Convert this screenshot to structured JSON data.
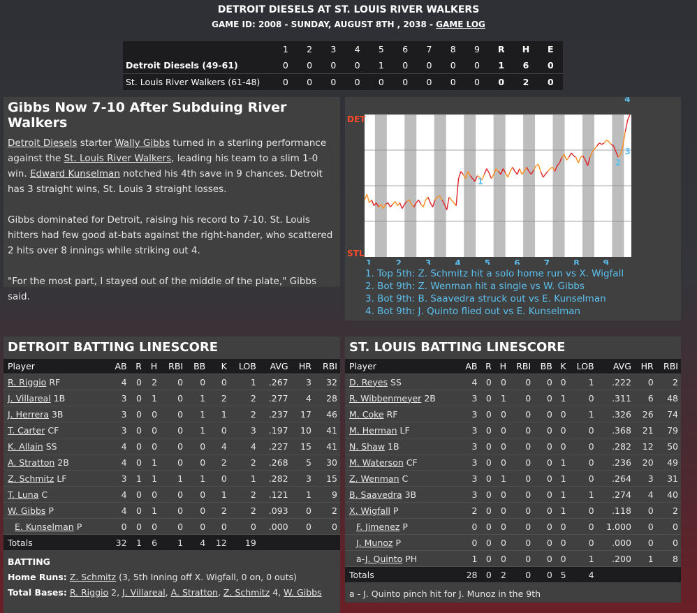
{
  "header": {
    "title": "DETROIT DIESELS AT ST. LOUIS RIVER WALKERS",
    "subtitle": "GAME ID: 2008 - SUNDAY, AUGUST 8TH , 2038 -",
    "game_log_label": "GAME LOG"
  },
  "linescore": {
    "columns": [
      "1",
      "2",
      "3",
      "4",
      "5",
      "6",
      "7",
      "8",
      "9",
      "R",
      "H",
      "E"
    ],
    "rows": [
      {
        "team": "Detroit Diesels (49-61)",
        "values": [
          "0",
          "0",
          "0",
          "0",
          "1",
          "0",
          "0",
          "0",
          "0",
          "1",
          "6",
          "0"
        ]
      },
      {
        "team": "St. Louis River Walkers (61-48)",
        "values": [
          "0",
          "0",
          "0",
          "0",
          "0",
          "0",
          "0",
          "0",
          "0",
          "0",
          "2",
          "0"
        ]
      }
    ]
  },
  "story": {
    "headline": "Gibbs Now 7-10 After Subduing River Walkers",
    "p1": {
      "link1": "Detroit Diesels",
      "t1": " starter ",
      "link2": "Wally Gibbs",
      "t2": " turned in a sterling performance against the ",
      "link3": "St. Louis River Walkers",
      "t3": ", leading his team to a slim 1-0 win. ",
      "link4": "Edward Kunselman",
      "t4": " notched his 4th save in 9 chances. Detroit has 3 straight wins, St. Louis 3 straight losses."
    },
    "p2": "Gibbs dominated for Detroit, raising his record to 7-10. St. Louis hitters had few good at-bats against the right-hander, who scattered 2 hits over 8 innings while striking out 4.",
    "p3": "\"For the most part, I stayed out of the middle of the plate,\" Gibbs said."
  },
  "win_prob": {
    "top_label": "DET",
    "bottom_label": "STL",
    "innings": [
      "1",
      "2",
      "3",
      "4",
      "5",
      "6",
      "7",
      "8",
      "9"
    ],
    "markers": [
      "1",
      "2",
      "3",
      "4"
    ],
    "plays": [
      "1. Top 5th: Z. Schmitz hit a solo home run vs X. Wigfall",
      "2. Bot 9th: Z. Wenman hit a single vs W. Gibbs",
      "3. Bot 9th: B. Saavedra struck out vs E. Kunselman",
      "4. Bot 9th: J. Quinto flied out vs E. Kunselman"
    ],
    "colors": {
      "line_a": "#ff8c1a",
      "line_b": "#e0202a",
      "marker": "#5cc0ef",
      "label": "#ff4a2a"
    },
    "det_prob": [
      0.4,
      0.44,
      0.38,
      0.4,
      0.36,
      0.38,
      0.35,
      0.37,
      0.34,
      0.37,
      0.38,
      0.35,
      0.37,
      0.39,
      0.36,
      0.38,
      0.34,
      0.37,
      0.39,
      0.4,
      0.37,
      0.35,
      0.38,
      0.4,
      0.37,
      0.35,
      0.4,
      0.42,
      0.38,
      0.35,
      0.4,
      0.42,
      0.43,
      0.4,
      0.37,
      0.33,
      0.42,
      0.4,
      0.38,
      0.36,
      0.55,
      0.6,
      0.58,
      0.55,
      0.6,
      0.57,
      0.55,
      0.53,
      0.57,
      0.56,
      0.54,
      0.58,
      0.62,
      0.59,
      0.55,
      0.58,
      0.62,
      0.6,
      0.58,
      0.62,
      0.59,
      0.56,
      0.6,
      0.63,
      0.6,
      0.58,
      0.62,
      0.58,
      0.6,
      0.63,
      0.6,
      0.58,
      0.61,
      0.64,
      0.65,
      0.6,
      0.56,
      0.58,
      0.6,
      0.62,
      0.63,
      0.6,
      0.64,
      0.66,
      0.7,
      0.72,
      0.68,
      0.7,
      0.73,
      0.71,
      0.7,
      0.66,
      0.7,
      0.71,
      0.68,
      0.64,
      0.7,
      0.74,
      0.76,
      0.78,
      0.8,
      0.79,
      0.8,
      0.82,
      0.81,
      0.79,
      0.78,
      0.74,
      0.7,
      0.72,
      0.78,
      0.88,
      0.96,
      1.0
    ]
  },
  "det_batting": {
    "title": "DETROIT BATTING LINESCORE",
    "columns": [
      "Player",
      "AB",
      "R",
      "H",
      "RBI",
      "BB",
      "K",
      "LOB",
      "AVG",
      "HR",
      "RBI"
    ],
    "rows": [
      {
        "name": "R. Riggio",
        "pos": "RF",
        "sub": false,
        "stats": [
          "4",
          "0",
          "2",
          "0",
          "0",
          "0",
          "1",
          ".267",
          "3",
          "32"
        ]
      },
      {
        "name": "J. Villareal",
        "pos": "1B",
        "sub": false,
        "stats": [
          "3",
          "0",
          "1",
          "0",
          "1",
          "2",
          "2",
          ".277",
          "4",
          "28"
        ]
      },
      {
        "name": "J. Herrera",
        "pos": "3B",
        "sub": false,
        "stats": [
          "3",
          "0",
          "0",
          "0",
          "1",
          "1",
          "2",
          ".237",
          "17",
          "46"
        ]
      },
      {
        "name": "T. Carter",
        "pos": "CF",
        "sub": false,
        "stats": [
          "3",
          "0",
          "0",
          "0",
          "1",
          "0",
          "3",
          ".197",
          "10",
          "41"
        ]
      },
      {
        "name": "K. Allain",
        "pos": "SS",
        "sub": false,
        "stats": [
          "4",
          "0",
          "0",
          "0",
          "0",
          "4",
          "4",
          ".227",
          "15",
          "41"
        ]
      },
      {
        "name": "A. Stratton",
        "pos": "2B",
        "sub": false,
        "stats": [
          "4",
          "0",
          "1",
          "0",
          "0",
          "2",
          "2",
          ".268",
          "5",
          "30"
        ]
      },
      {
        "name": "Z. Schmitz",
        "pos": "LF",
        "sub": false,
        "stats": [
          "3",
          "1",
          "1",
          "1",
          "1",
          "0",
          "1",
          ".282",
          "3",
          "15"
        ]
      },
      {
        "name": "T. Luna",
        "pos": "C",
        "sub": false,
        "stats": [
          "4",
          "0",
          "0",
          "0",
          "0",
          "1",
          "2",
          ".121",
          "1",
          "9"
        ]
      },
      {
        "name": "W. Gibbs",
        "pos": "P",
        "sub": false,
        "stats": [
          "4",
          "0",
          "1",
          "0",
          "0",
          "2",
          "2",
          ".093",
          "0",
          "2"
        ]
      },
      {
        "name": "E. Kunselman",
        "pos": "P",
        "sub": true,
        "stats": [
          "0",
          "0",
          "0",
          "0",
          "0",
          "0",
          "0",
          ".000",
          "0",
          "0"
        ]
      }
    ],
    "totals_label": "Totals",
    "totals": [
      "32",
      "1",
      "6",
      "1",
      "4",
      "12",
      "19",
      "",
      "",
      ""
    ],
    "batting_heading": "BATTING",
    "hr_label": "Home Runs:",
    "hr_player": "Z. Schmitz",
    "hr_detail": " (3, 5th Inning off X. Wigfall, 0 on, 0 outs)",
    "tb_label": "Total Bases:",
    "tb_items": [
      {
        "name": "R. Riggio",
        "value": " 2, "
      },
      {
        "name": "J. Villareal",
        "value": ", "
      },
      {
        "name": "A. Stratton",
        "value": ", "
      },
      {
        "name": "Z. Schmitz",
        "value": " 4, "
      },
      {
        "name": "W. Gibbs",
        "value": ""
      }
    ]
  },
  "stl_batting": {
    "title": "ST. LOUIS BATTING LINESCORE",
    "columns": [
      "Player",
      "AB",
      "R",
      "H",
      "RBI",
      "BB",
      "K",
      "LOB",
      "AVG",
      "HR",
      "RBI"
    ],
    "rows": [
      {
        "name": "D. Reyes",
        "pos": "SS",
        "sub": false,
        "prefix": "",
        "stats": [
          "4",
          "0",
          "0",
          "0",
          "0",
          "0",
          "1",
          ".222",
          "0",
          "2"
        ]
      },
      {
        "name": "R. Wibbenmeyer",
        "pos": "2B",
        "sub": false,
        "prefix": "",
        "stats": [
          "3",
          "0",
          "1",
          "0",
          "0",
          "1",
          "0",
          ".311",
          "6",
          "48"
        ]
      },
      {
        "name": "M. Coke",
        "pos": "RF",
        "sub": false,
        "prefix": "",
        "stats": [
          "3",
          "0",
          "0",
          "0",
          "0",
          "0",
          "1",
          ".326",
          "26",
          "74"
        ]
      },
      {
        "name": "M. Herman",
        "pos": "LF",
        "sub": false,
        "prefix": "",
        "stats": [
          "3",
          "0",
          "0",
          "0",
          "0",
          "0",
          "0",
          ".368",
          "21",
          "79"
        ]
      },
      {
        "name": "N. Shaw",
        "pos": "1B",
        "sub": false,
        "prefix": "",
        "stats": [
          "3",
          "0",
          "0",
          "0",
          "0",
          "0",
          "0",
          ".282",
          "12",
          "50"
        ]
      },
      {
        "name": "M. Waterson",
        "pos": "CF",
        "sub": false,
        "prefix": "",
        "stats": [
          "3",
          "0",
          "0",
          "0",
          "0",
          "1",
          "0",
          ".236",
          "20",
          "49"
        ]
      },
      {
        "name": "Z. Wenman",
        "pos": "C",
        "sub": false,
        "prefix": "",
        "stats": [
          "3",
          "0",
          "1",
          "0",
          "0",
          "1",
          "0",
          ".264",
          "3",
          "31"
        ]
      },
      {
        "name": "B. Saavedra",
        "pos": "3B",
        "sub": false,
        "prefix": "",
        "stats": [
          "3",
          "0",
          "0",
          "0",
          "0",
          "1",
          "1",
          ".274",
          "4",
          "40"
        ]
      },
      {
        "name": "X. Wigfall",
        "pos": "P",
        "sub": false,
        "prefix": "",
        "stats": [
          "2",
          "0",
          "0",
          "0",
          "0",
          "1",
          "0",
          ".118",
          "0",
          "2"
        ]
      },
      {
        "name": "F. Jimenez",
        "pos": "P",
        "sub": true,
        "prefix": "",
        "stats": [
          "0",
          "0",
          "0",
          "0",
          "0",
          "0",
          "0",
          "1.000",
          "0",
          "0"
        ]
      },
      {
        "name": "J. Munoz",
        "pos": "P",
        "sub": true,
        "prefix": "",
        "stats": [
          "0",
          "0",
          "0",
          "0",
          "0",
          "0",
          "0",
          ".000",
          "0",
          "0"
        ]
      },
      {
        "name": "J. Quinto",
        "pos": "PH",
        "sub": true,
        "prefix": "a-",
        "stats": [
          "1",
          "0",
          "0",
          "0",
          "0",
          "0",
          "1",
          ".200",
          "1",
          "8"
        ]
      }
    ],
    "totals_label": "Totals",
    "totals": [
      "28",
      "0",
      "2",
      "0",
      "0",
      "5",
      "4",
      "",
      "",
      ""
    ],
    "note": "a - J. Quinto pinch hit for J. Munoz in the 9th"
  }
}
